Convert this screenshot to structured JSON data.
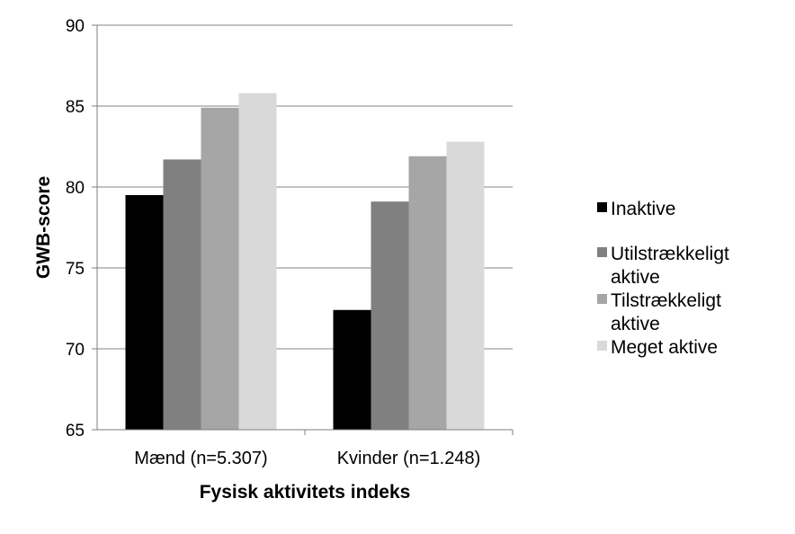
{
  "chart_data": {
    "type": "bar",
    "title": "",
    "xlabel": "Fysisk aktivitets indeks",
    "ylabel": "GWB-score",
    "ylim": [
      65,
      90
    ],
    "yticks": [
      65,
      70,
      75,
      80,
      85,
      90
    ],
    "grid": true,
    "legend_position": "right",
    "categories": [
      "Mænd (n=5.307)",
      "Kvinder (n=1.248)"
    ],
    "series": [
      {
        "name": "Inaktive",
        "color": "#000000",
        "values": [
          79.5,
          72.4
        ]
      },
      {
        "name": "Utilstrækkeligt aktive",
        "color": "#808080",
        "values": [
          81.7,
          79.1
        ]
      },
      {
        "name": "Tilstrækkeligt aktive",
        "color": "#a6a6a6",
        "values": [
          84.9,
          81.9
        ]
      },
      {
        "name": "Meget aktive",
        "color": "#d9d9d9",
        "values": [
          85.8,
          82.8
        ]
      }
    ]
  }
}
